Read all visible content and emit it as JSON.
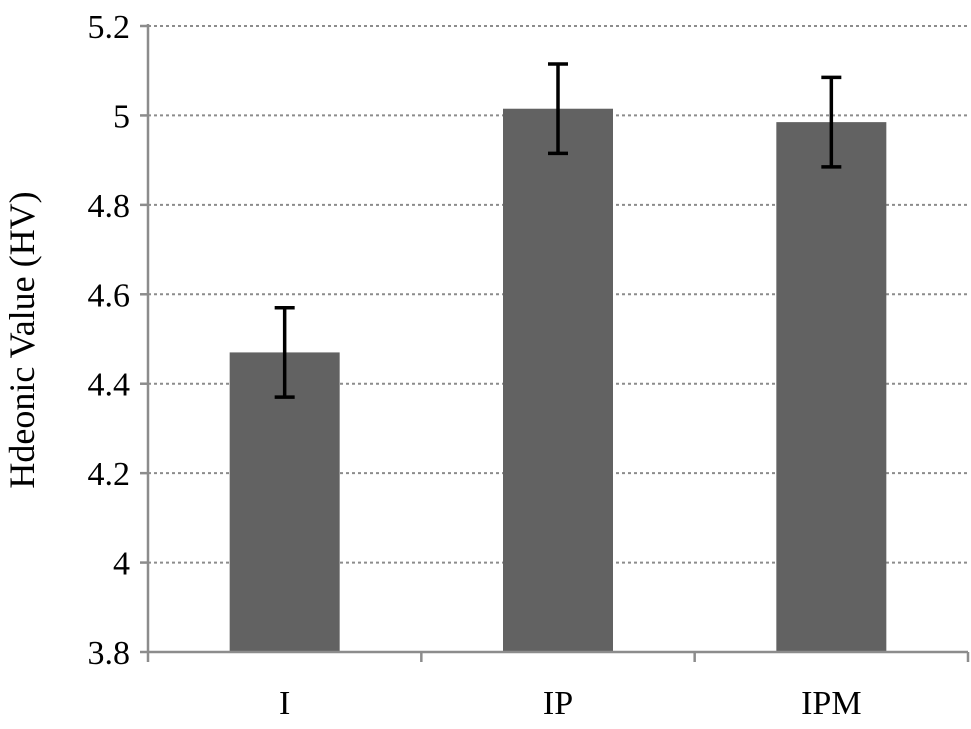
{
  "chart_data": {
    "type": "bar",
    "title": "",
    "xlabel": "",
    "ylabel": "Hdeonic Value (HV)",
    "categories": [
      "I",
      "IP",
      "IPM"
    ],
    "values": [
      4.47,
      5.015,
      4.985
    ],
    "error": [
      0.1,
      0.1,
      0.1
    ],
    "ylim": [
      3.8,
      5.2
    ],
    "yticks": [
      3.8,
      4,
      4.2,
      4.4,
      4.6,
      4.8,
      5,
      5.2
    ],
    "ytick_labels": [
      "3.8",
      "4",
      "4.2",
      "4.4",
      "4.6",
      "4.8",
      "5",
      "5.2"
    ],
    "grid": "horizontal dotted",
    "legend": "none",
    "colors": {
      "bar": "#626262",
      "axis": "#8c8c8c",
      "grid": "#8c8c8c",
      "error_bar": "#000000"
    }
  }
}
